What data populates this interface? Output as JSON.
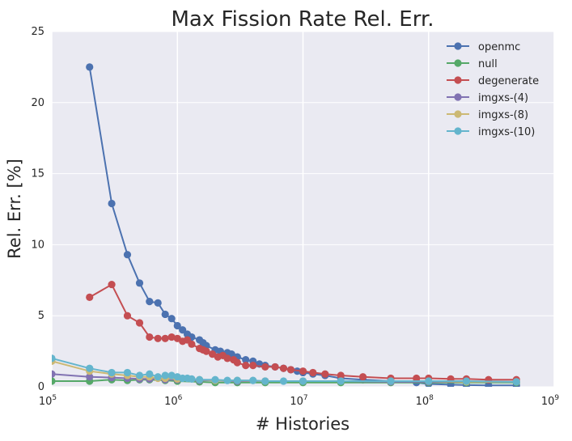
{
  "chart_data": {
    "type": "line",
    "title": "Max Fission Rate Rel. Err.",
    "xlabel": "# Histories",
    "ylabel": "Rel. Err. [%]",
    "xscale": "log",
    "xlim": [
      100000,
      1000000000
    ],
    "ylim": [
      0,
      25
    ],
    "grid": true,
    "legend_position": "top-right",
    "x_ticks": [
      {
        "value": 100000,
        "base": "10",
        "exp": "5"
      },
      {
        "value": 1000000,
        "base": "10",
        "exp": "6"
      },
      {
        "value": 10000000,
        "base": "10",
        "exp": "7"
      },
      {
        "value": 100000000,
        "base": "10",
        "exp": "8"
      },
      {
        "value": 1000000000,
        "base": "10",
        "exp": "9"
      }
    ],
    "y_ticks": [
      "0",
      "5",
      "10",
      "15",
      "20",
      "25"
    ],
    "series": [
      {
        "name": "openmc",
        "color": "#4c72b0",
        "x": [
          200000,
          300000,
          400000,
          500000,
          600000,
          700000,
          800000,
          900000,
          1000000,
          1100000,
          1200000,
          1300000,
          1500000,
          1600000,
          1700000,
          2000000,
          2200000,
          2500000,
          2700000,
          3000000,
          3500000,
          4000000,
          4500000,
          5000000,
          6000000,
          7000000,
          8000000,
          9000000,
          10000000,
          12000000,
          15000000,
          20000000,
          30000000,
          50000000,
          80000000,
          100000000,
          150000000,
          200000000,
          300000000,
          500000000
        ],
        "y": [
          22.5,
          12.9,
          9.3,
          7.3,
          6.0,
          5.9,
          5.1,
          4.8,
          4.3,
          4.0,
          3.7,
          3.5,
          3.3,
          3.1,
          2.9,
          2.6,
          2.5,
          2.4,
          2.3,
          2.1,
          1.9,
          1.8,
          1.6,
          1.5,
          1.4,
          1.3,
          1.2,
          1.1,
          1.0,
          0.9,
          0.8,
          0.6,
          0.5,
          0.4,
          0.3,
          0.2,
          0.15,
          0.12,
          0.1,
          0.1
        ]
      },
      {
        "name": "null",
        "color": "#55a868",
        "x": [
          100000,
          200000,
          300000,
          400000,
          500000,
          600000,
          800000,
          1000000,
          1500000,
          2000000,
          3000000,
          5000000,
          10000000,
          20000000,
          50000000,
          100000000,
          200000000,
          500000000
        ],
        "y": [
          0.4,
          0.4,
          0.5,
          0.45,
          0.5,
          0.5,
          0.45,
          0.4,
          0.35,
          0.3,
          0.3,
          0.3,
          0.3,
          0.3,
          0.3,
          0.3,
          0.3,
          0.3
        ]
      },
      {
        "name": "degenerate",
        "color": "#c44e52",
        "x": [
          200000,
          300000,
          400000,
          500000,
          600000,
          700000,
          800000,
          900000,
          1000000,
          1100000,
          1200000,
          1300000,
          1500000,
          1600000,
          1700000,
          1900000,
          2100000,
          2300000,
          2500000,
          2800000,
          3000000,
          3500000,
          4000000,
          5000000,
          6000000,
          7000000,
          8000000,
          10000000,
          12000000,
          15000000,
          20000000,
          30000000,
          50000000,
          80000000,
          100000000,
          150000000,
          200000000,
          300000000,
          500000000
        ],
        "y": [
          6.3,
          7.2,
          5.0,
          4.5,
          3.5,
          3.4,
          3.4,
          3.5,
          3.4,
          3.2,
          3.3,
          3.0,
          2.7,
          2.6,
          2.5,
          2.3,
          2.1,
          2.2,
          2.0,
          1.9,
          1.7,
          1.5,
          1.5,
          1.4,
          1.4,
          1.3,
          1.2,
          1.1,
          1.0,
          0.9,
          0.8,
          0.7,
          0.6,
          0.6,
          0.6,
          0.55,
          0.55,
          0.5,
          0.5
        ]
      },
      {
        "name": "imgxs-(4)",
        "color": "#8172b2",
        "x": [
          100000,
          200000,
          300000,
          400000,
          500000,
          600000,
          800000,
          1000000,
          1500000,
          2000000,
          3000000,
          5000000,
          10000000,
          20000000,
          50000000,
          100000000,
          200000000,
          500000000
        ],
        "y": [
          0.9,
          0.7,
          0.65,
          0.6,
          0.55,
          0.55,
          0.5,
          0.5,
          0.45,
          0.45,
          0.4,
          0.4,
          0.4,
          0.4,
          0.35,
          0.35,
          0.35,
          0.35
        ]
      },
      {
        "name": "imgxs-(8)",
        "color": "#ccb974",
        "x": [
          100000,
          200000,
          300000,
          400000,
          500000,
          600000,
          700000,
          800000,
          1000000,
          1500000,
          2000000,
          3000000,
          5000000,
          10000000,
          20000000,
          50000000,
          100000000,
          200000000,
          500000000
        ],
        "y": [
          1.8,
          1.1,
          0.9,
          0.8,
          0.7,
          0.7,
          0.6,
          0.6,
          0.55,
          0.5,
          0.45,
          0.45,
          0.4,
          0.4,
          0.4,
          0.4,
          0.4,
          0.35,
          0.35
        ]
      },
      {
        "name": "imgxs-(10)",
        "color": "#64b5cd",
        "x": [
          100000,
          200000,
          300000,
          400000,
          500000,
          600000,
          700000,
          800000,
          900000,
          1000000,
          1100000,
          1200000,
          1300000,
          1500000,
          2000000,
          2500000,
          3000000,
          4000000,
          5000000,
          7000000,
          10000000,
          20000000,
          50000000,
          100000000,
          200000000,
          500000000
        ],
        "y": [
          2.0,
          1.3,
          1.0,
          1.0,
          0.8,
          0.9,
          0.7,
          0.8,
          0.8,
          0.7,
          0.6,
          0.6,
          0.55,
          0.5,
          0.5,
          0.45,
          0.45,
          0.45,
          0.4,
          0.4,
          0.4,
          0.4,
          0.4,
          0.4,
          0.4,
          0.35
        ]
      }
    ]
  }
}
